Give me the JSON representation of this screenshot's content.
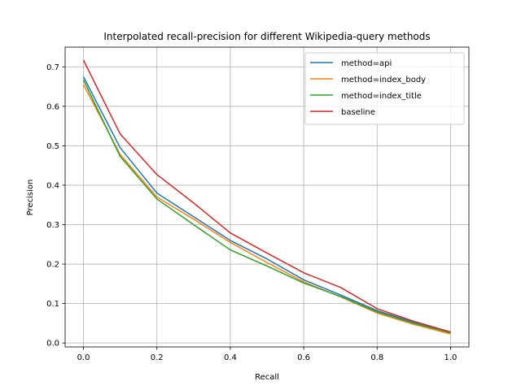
{
  "chart_data": {
    "type": "line",
    "title": "Interpolated recall-precision for different Wikipedia-query methods",
    "xlabel": "Recall",
    "ylabel": "Precision",
    "xlim": [
      -0.05,
      1.05
    ],
    "ylim": [
      -0.01,
      0.75
    ],
    "grid": true,
    "legend_position": "top-right",
    "x": [
      0.0,
      0.1,
      0.2,
      0.3,
      0.4,
      0.5,
      0.6,
      0.7,
      0.8,
      0.9,
      1.0
    ],
    "x_ticks": [
      "0.0",
      "0.2",
      "0.4",
      "0.6",
      "0.8",
      "1.0"
    ],
    "y_ticks": [
      "0.0",
      "0.1",
      "0.2",
      "0.3",
      "0.4",
      "0.5",
      "0.6",
      "0.7"
    ],
    "series": [
      {
        "name": "method=api",
        "color": "#1f77b4",
        "values": [
          0.675,
          0.495,
          0.38,
          0.32,
          0.26,
          0.213,
          0.16,
          0.122,
          0.082,
          0.053,
          0.027
        ]
      },
      {
        "name": "method=index_body",
        "color": "#ff7f0e",
        "values": [
          0.655,
          0.478,
          0.37,
          0.314,
          0.255,
          0.204,
          0.155,
          0.117,
          0.076,
          0.047,
          0.023
        ]
      },
      {
        "name": "method=index_title",
        "color": "#2ca02c",
        "values": [
          0.667,
          0.473,
          0.365,
          0.3,
          0.236,
          0.195,
          0.152,
          0.118,
          0.079,
          0.05,
          0.026
        ]
      },
      {
        "name": "baseline",
        "color": "#d62728",
        "values": [
          0.717,
          0.53,
          0.427,
          0.355,
          0.279,
          0.228,
          0.178,
          0.141,
          0.087,
          0.055,
          0.028
        ]
      }
    ]
  }
}
